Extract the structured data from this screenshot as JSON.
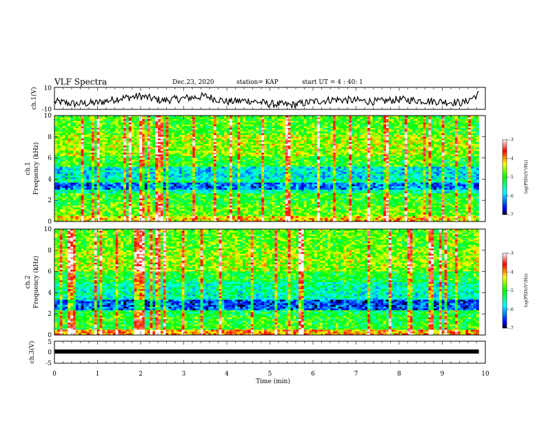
{
  "header": {
    "title": "VLF Spectra",
    "date": "Dec.23, 2020",
    "station": "station= KAP",
    "start": "start  UT =   4 : 40: 1"
  },
  "chart_data": [
    {
      "type": "line",
      "panel": "ch1-waveform",
      "ylabel": "ch.1(V)",
      "ylim": [
        -10,
        10
      ],
      "yticks": [
        "10",
        "-10"
      ],
      "xlim": [
        0,
        10
      ],
      "note_values": "quasi-random waveform amplitude in volts over 0-9.85 min",
      "x": [
        0,
        0.5,
        1.0,
        1.5,
        2.0,
        2.5,
        3.0,
        3.5,
        4.0,
        4.5,
        5.0,
        5.5,
        6.0,
        6.5,
        7.0,
        7.5,
        8.0,
        8.5,
        9.0,
        9.5,
        9.85
      ],
      "y": [
        -3,
        -5,
        -4,
        0,
        2,
        -2,
        0,
        2,
        -3,
        -2,
        -5,
        -6,
        -3,
        -1,
        -2,
        -3,
        -1,
        -2,
        -3,
        -4,
        4
      ]
    },
    {
      "type": "heatmap",
      "panel": "ch1-spectrogram",
      "ylabel_line1": "ch.1",
      "ylabel_line2": "Frequency (kHz)",
      "ylim": [
        0,
        10
      ],
      "yticks": [
        "0",
        "2",
        "4",
        "6",
        "8",
        "10"
      ],
      "xlim": [
        0,
        10
      ],
      "colorbar": {
        "range": [
          -7,
          -3
        ],
        "ticks": [
          "-3",
          "-4",
          "-5",
          "-6",
          "-7"
        ],
        "label": "log(PSD)(V²/Hz)",
        "colors": [
          "#000000",
          "#0000ff",
          "#00ffff",
          "#00ff00",
          "#ffff00",
          "#ff0000",
          "#ffffff"
        ]
      },
      "bands_khz": [
        {
          "range": [
            0,
            0.5
          ],
          "level": -4.2
        },
        {
          "range": [
            0.5,
            1.5
          ],
          "level": -4.8
        },
        {
          "range": [
            1.5,
            2.6
          ],
          "level": -5.0
        },
        {
          "range": [
            2.6,
            3.0
          ],
          "level": -5.6
        },
        {
          "range": [
            3.0,
            3.6
          ],
          "level": -6.3
        },
        {
          "range": [
            3.6,
            4.0
          ],
          "level": -5.4
        },
        {
          "range": [
            4.0,
            5.2
          ],
          "level": -5.8
        },
        {
          "range": [
            5.2,
            6.2
          ],
          "level": -5.0
        },
        {
          "range": [
            6.2,
            8.2
          ],
          "level": -4.6
        },
        {
          "range": [
            8.2,
            10
          ],
          "level": -4.9
        }
      ]
    },
    {
      "type": "heatmap",
      "panel": "ch2-spectrogram",
      "ylabel_line1": "ch.2",
      "ylabel_line2": "Frequency (kHz)",
      "ylim": [
        0,
        10
      ],
      "yticks": [
        "0",
        "2",
        "4",
        "6",
        "8",
        "10"
      ],
      "xlim": [
        0,
        10
      ],
      "colorbar": {
        "range": [
          -7,
          -3
        ],
        "ticks": [
          "-3",
          "-4",
          "-5",
          "-6",
          "-7"
        ],
        "label": "log(PSD)(V²/Hz)",
        "colors": [
          "#000000",
          "#0000ff",
          "#00ffff",
          "#00ff00",
          "#ffff00",
          "#ff0000",
          "#ffffff"
        ]
      },
      "bands_khz": [
        {
          "range": [
            0,
            0.5
          ],
          "level": -4.0
        },
        {
          "range": [
            0.5,
            1.8
          ],
          "level": -5.0
        },
        {
          "range": [
            1.8,
            2.4
          ],
          "level": -5.2
        },
        {
          "range": [
            2.4,
            3.4
          ],
          "level": -6.4
        },
        {
          "range": [
            3.4,
            4.0
          ],
          "level": -5.6
        },
        {
          "range": [
            4.0,
            5.0
          ],
          "level": -5.5
        },
        {
          "range": [
            5.0,
            6.0
          ],
          "level": -5.1
        },
        {
          "range": [
            6.0,
            8.0
          ],
          "level": -4.6
        },
        {
          "range": [
            8.0,
            10
          ],
          "level": -4.8
        }
      ]
    },
    {
      "type": "line",
      "panel": "ch3-waveform",
      "ylabel": "ch.3(V)",
      "ylim": [
        -5,
        5
      ],
      "yticks": [
        "5",
        "0",
        "-5"
      ],
      "xlim": [
        0,
        10
      ],
      "x": [
        0,
        9.85
      ],
      "y": [
        0,
        0
      ]
    }
  ],
  "xaxis": {
    "label": "Time (min)",
    "ticks": [
      "0",
      "1",
      "2",
      "3",
      "4",
      "5",
      "6",
      "7",
      "8",
      "9",
      "10"
    ]
  }
}
